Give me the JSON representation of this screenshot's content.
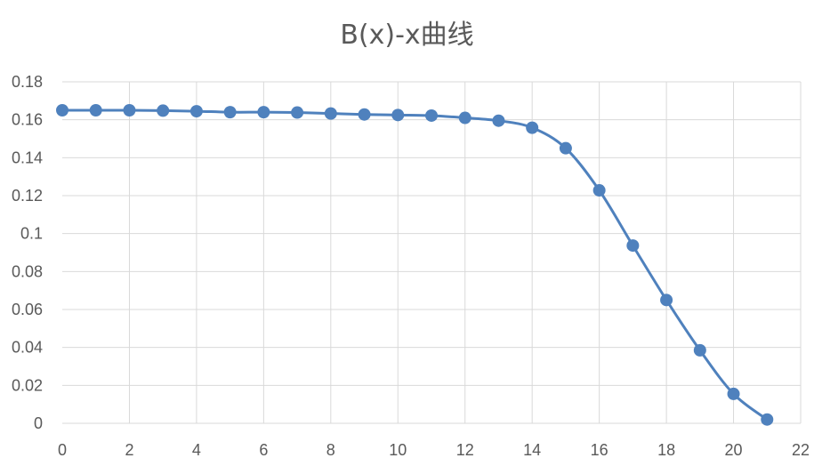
{
  "chart_data": {
    "type": "line",
    "title": "B(x)-x曲线",
    "xlabel": "",
    "ylabel": "",
    "xlim": [
      0,
      22
    ],
    "ylim": [
      0,
      0.18
    ],
    "x_ticks": [
      0,
      2,
      4,
      6,
      8,
      10,
      12,
      14,
      16,
      18,
      20,
      22
    ],
    "y_ticks": [
      0,
      0.02,
      0.04,
      0.06,
      0.08,
      0.1,
      0.12,
      0.14,
      0.16,
      0.18
    ],
    "y_tick_labels": [
      "0",
      "0.02",
      "0.04",
      "0.06",
      "0.08",
      "0.1",
      "0.12",
      "0.14",
      "0.16",
      "0.18"
    ],
    "grid": true,
    "smooth": true,
    "line_color": "#4F81BD",
    "series": [
      {
        "x": [
          0,
          1,
          2,
          3,
          4,
          5,
          6,
          7,
          8,
          9,
          10,
          11,
          12,
          13,
          14,
          15,
          16,
          17,
          18,
          19,
          20,
          21
        ],
        "values": [
          0.165,
          0.165,
          0.165,
          0.1648,
          0.1645,
          0.164,
          0.164,
          0.1638,
          0.1633,
          0.1628,
          0.1625,
          0.1622,
          0.161,
          0.1595,
          0.1558,
          0.145,
          0.1228,
          0.0937,
          0.065,
          0.0385,
          0.0155,
          0.002
        ]
      }
    ]
  }
}
